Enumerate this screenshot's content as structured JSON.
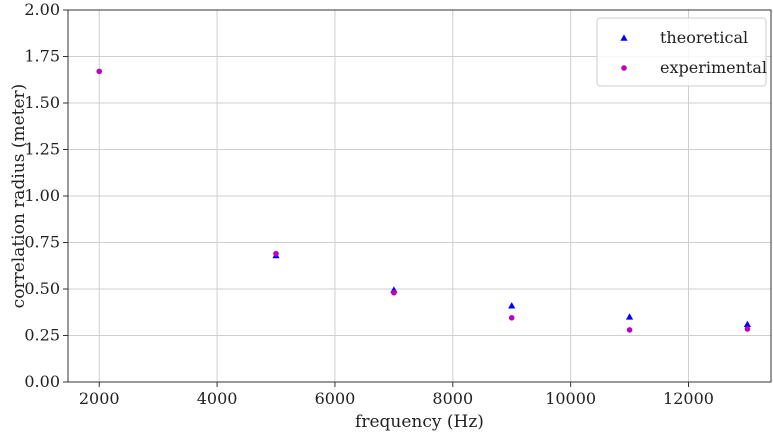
{
  "chart_data": {
    "type": "scatter",
    "xlabel": "frequency (Hz)",
    "ylabel": "correlation radius (meter)",
    "xlim": [
      1470,
      13400
    ],
    "ylim": [
      0,
      2.0
    ],
    "xticks": [
      2000,
      4000,
      6000,
      8000,
      10000,
      12000
    ],
    "yticks": [
      0.0,
      0.25,
      0.5,
      0.75,
      1.0,
      1.25,
      1.5,
      1.75,
      2.0
    ],
    "xtick_labels": [
      "2000",
      "4000",
      "6000",
      "8000",
      "10000",
      "12000"
    ],
    "ytick_labels": [
      "0.00",
      "0.25",
      "0.50",
      "0.75",
      "1.00",
      "1.25",
      "1.50",
      "1.75",
      "2.00"
    ],
    "grid": true,
    "legend_position": "top-right",
    "series": [
      {
        "name": "theoretical",
        "marker": "triangle",
        "color": "#0000ff",
        "x": [
          5000,
          7000,
          9000,
          11000,
          13000
        ],
        "y": [
          0.68,
          0.495,
          0.41,
          0.35,
          0.31
        ]
      },
      {
        "name": "experimental",
        "marker": "circle",
        "color": "#bf00bf",
        "x": [
          2000,
          5000,
          7000,
          9000,
          11000,
          13000
        ],
        "y": [
          1.67,
          0.69,
          0.48,
          0.345,
          0.28,
          0.285
        ]
      }
    ]
  }
}
